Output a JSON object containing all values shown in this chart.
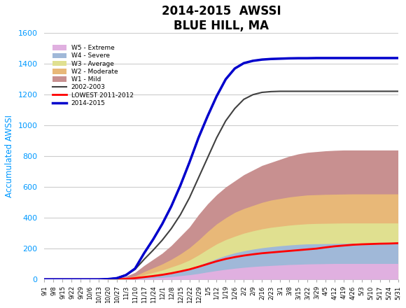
{
  "title": "2014-2015  AWSSI",
  "subtitle": "BLUE HILL, MA",
  "ylabel": "Accumulated AWSSI",
  "ylim": [
    0,
    1600
  ],
  "yticks": [
    0,
    200,
    400,
    600,
    800,
    1000,
    1200,
    1400,
    1600
  ],
  "colors": {
    "W5": "#e0b0e0",
    "W4": "#a0b8d8",
    "W3": "#e0e090",
    "W2": "#e8b878",
    "W1": "#c89090",
    "line_2002": "#404040",
    "line_lowest": "#ff0000",
    "line_2014": "#0000cc"
  },
  "x_labels": [
    "9/1",
    "9/8",
    "9/15",
    "9/22",
    "9/29",
    "10/6",
    "10/13",
    "10/20",
    "10/27",
    "11/3",
    "11/10",
    "11/17",
    "11/24",
    "12/1",
    "12/8",
    "12/15",
    "12/22",
    "12/29",
    "1/5",
    "1/12",
    "1/19",
    "1/26",
    "2/2",
    "2/9",
    "2/16",
    "2/23",
    "3/1",
    "3/8",
    "3/15",
    "3/22",
    "3/29",
    "4/5",
    "4/12",
    "4/19",
    "4/26",
    "5/3",
    "5/10",
    "5/17",
    "5/24",
    "5/31"
  ],
  "n_points": 40,
  "W1_top": [
    0,
    0,
    0,
    0,
    0,
    0,
    0,
    2,
    8,
    20,
    45,
    90,
    130,
    170,
    220,
    280,
    340,
    420,
    490,
    550,
    600,
    640,
    680,
    710,
    740,
    760,
    780,
    800,
    815,
    825,
    830,
    835,
    838,
    840,
    840,
    840,
    840,
    840,
    840,
    840
  ],
  "W2_top": [
    0,
    0,
    0,
    0,
    0,
    0,
    0,
    1,
    4,
    10,
    22,
    50,
    75,
    100,
    130,
    165,
    205,
    255,
    310,
    360,
    400,
    435,
    460,
    480,
    500,
    515,
    525,
    535,
    542,
    548,
    550,
    552,
    553,
    554,
    555,
    555,
    555,
    555,
    555,
    555
  ],
  "W3_top": [
    0,
    0,
    0,
    0,
    0,
    0,
    0,
    0,
    2,
    6,
    13,
    30,
    45,
    60,
    80,
    100,
    125,
    158,
    195,
    230,
    258,
    280,
    300,
    315,
    328,
    338,
    345,
    352,
    357,
    361,
    363,
    364,
    365,
    366,
    366,
    366,
    366,
    366,
    366,
    366
  ],
  "W4_top": [
    0,
    0,
    0,
    0,
    0,
    0,
    0,
    0,
    1,
    3,
    7,
    16,
    24,
    32,
    44,
    56,
    70,
    90,
    112,
    135,
    155,
    172,
    185,
    196,
    205,
    212,
    218,
    223,
    227,
    230,
    231,
    232,
    233,
    234,
    234,
    234,
    234,
    234,
    234,
    234
  ],
  "W5_top": [
    0,
    0,
    0,
    0,
    0,
    0,
    0,
    0,
    0,
    1,
    3,
    7,
    10,
    13,
    18,
    24,
    30,
    38,
    48,
    57,
    65,
    72,
    78,
    83,
    87,
    90,
    93,
    96,
    98,
    100,
    101,
    102,
    103,
    103,
    103,
    103,
    103,
    103,
    103,
    103
  ],
  "line_2002_y": [
    0,
    0,
    0,
    0,
    0,
    0,
    0,
    2,
    10,
    30,
    65,
    130,
    190,
    255,
    330,
    420,
    530,
    660,
    790,
    920,
    1030,
    1110,
    1170,
    1200,
    1215,
    1220,
    1222,
    1222,
    1222,
    1222,
    1222,
    1222,
    1222,
    1222,
    1222,
    1222,
    1222,
    1222,
    1222,
    1222
  ],
  "line_lowest_y": [
    0,
    0,
    0,
    0,
    0,
    0,
    0,
    0,
    1,
    3,
    8,
    15,
    22,
    30,
    40,
    52,
    65,
    82,
    100,
    118,
    133,
    145,
    155,
    163,
    170,
    175,
    180,
    185,
    190,
    195,
    200,
    208,
    215,
    220,
    225,
    228,
    230,
    232,
    233,
    235
  ],
  "line_2014_y": [
    0,
    0,
    0,
    0,
    0,
    0,
    0,
    2,
    8,
    28,
    70,
    170,
    260,
    360,
    475,
    610,
    760,
    920,
    1060,
    1190,
    1300,
    1370,
    1405,
    1420,
    1428,
    1432,
    1434,
    1436,
    1437,
    1437,
    1438,
    1438,
    1438,
    1438,
    1438,
    1438,
    1438,
    1438,
    1438,
    1438
  ]
}
